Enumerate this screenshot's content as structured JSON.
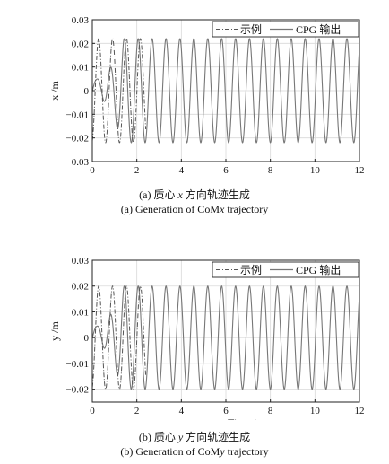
{
  "chart_data": [
    {
      "type": "line",
      "id": "a",
      "xlabel": "Time /s",
      "ylabel": "x /m",
      "xlim": [
        0,
        12
      ],
      "ylim": [
        -0.03,
        0.03
      ],
      "xticks": [
        "0",
        "2",
        "4",
        "6",
        "8",
        "10",
        "12"
      ],
      "yticks": [
        "−0.03",
        "−0.02",
        "−0.01",
        "0",
        "0.01",
        "0.02",
        "0.03"
      ],
      "grid": true,
      "legend_position": "top-right",
      "legend": [
        "示例",
        "CPG 输出"
      ],
      "series": [
        {
          "name": "示例",
          "style": "dash-dot",
          "color": "#555555",
          "amplitude": 0.022,
          "frequency_hz": 1.6,
          "x": [
            0,
            0.5
          ],
          "note_shape": "sinusoid"
        },
        {
          "name": "CPG 输出",
          "style": "solid",
          "color": "#777777",
          "amplitude": 0.022,
          "frequency_hz": 1.6,
          "x": [
            0,
            12
          ]
        }
      ]
    },
    {
      "type": "line",
      "id": "b",
      "xlabel": "Time /s",
      "ylabel": "y /m",
      "xlim": [
        0,
        12
      ],
      "ylim": [
        -0.025,
        0.03
      ],
      "xticks": [
        "0",
        "2",
        "4",
        "6",
        "8",
        "10",
        "12"
      ],
      "yticks": [
        "−0.02",
        "−0.01",
        "0",
        "0.01",
        "0.02",
        "0.03"
      ],
      "grid": true,
      "legend_position": "top-right",
      "legend": [
        "示例",
        "CPG 输出"
      ],
      "series": [
        {
          "name": "示例",
          "style": "dash-dot",
          "color": "#555555",
          "amplitude": 0.02,
          "frequency_hz": 1.6
        },
        {
          "name": "CPG 输出",
          "style": "solid",
          "color": "#777777",
          "amplitude": 0.02,
          "frequency_hz": 1.6
        }
      ]
    }
  ],
  "captions": {
    "a_cn_prefix": "(a) 质心",
    "a_cn_var": "x",
    "a_cn_suffix": "方向轨迹生成",
    "a_en_prefix": "(a) Generation of CoM",
    "a_en_var": "x",
    "a_en_suffix": " trajectory",
    "b_cn_prefix": "(b) 质心",
    "b_cn_var": "y",
    "b_cn_suffix": "方向轨迹生成",
    "b_en_prefix": "(b) Generation of CoM",
    "b_en_var": "y",
    "b_en_suffix": " trajectory"
  }
}
